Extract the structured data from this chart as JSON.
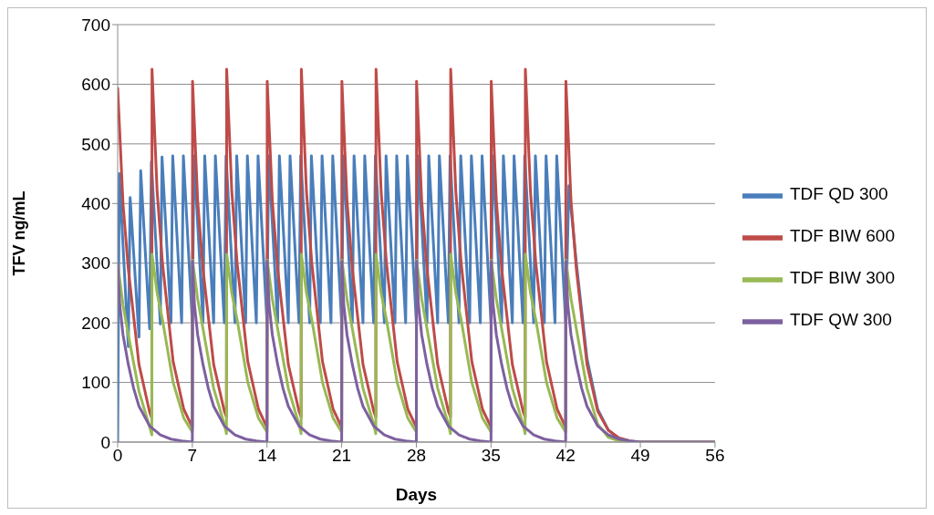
{
  "chart_data": {
    "type": "line",
    "xlabel": "Days",
    "ylabel": "TFV ng/mL",
    "xlim": [
      0,
      56
    ],
    "xticks": [
      0,
      7,
      14,
      21,
      28,
      35,
      42,
      49,
      56
    ],
    "ylim": [
      0,
      700
    ],
    "yticks": [
      0,
      100,
      200,
      300,
      400,
      500,
      600,
      700
    ],
    "grid": "y",
    "legend": "right",
    "marker": "none",
    "line_style": "solid",
    "series": [
      {
        "name": "TDF QD 300",
        "color": "#4a7ebb",
        "x": [
          0,
          0.15,
          1,
          1.17,
          2,
          2.16,
          3,
          3.16,
          4,
          4.16,
          5,
          5.16,
          6,
          6.16,
          7,
          7.16,
          8,
          8.16,
          9,
          9.16,
          10,
          10.16,
          11,
          11.16,
          12,
          12.16,
          13,
          13.16,
          14,
          14.16,
          15,
          15.16,
          16,
          16.16,
          17,
          17.16,
          18,
          18.16,
          19,
          19.16,
          20,
          20.16,
          21,
          21.16,
          22,
          22.16,
          23,
          23.16,
          24,
          24.16,
          25,
          25.16,
          26,
          26.16,
          27,
          27.16,
          28,
          28.16,
          29,
          29.16,
          30,
          30.16,
          31,
          31.16,
          32,
          32.16,
          33,
          33.16,
          34,
          34.16,
          35,
          35.16,
          36,
          36.16,
          37,
          37.16,
          38,
          38.16,
          39,
          39.16,
          40,
          40.16,
          41,
          41.16,
          42,
          42.3,
          43,
          44,
          45,
          46,
          47,
          48
        ],
        "values": [
          0,
          450,
          160,
          410,
          176,
          455,
          190,
          470,
          198,
          478,
          200,
          480,
          200,
          480,
          200,
          480,
          200,
          480,
          200,
          480,
          200,
          480,
          200,
          480,
          200,
          480,
          200,
          480,
          200,
          480,
          200,
          480,
          200,
          480,
          200,
          480,
          200,
          480,
          200,
          480,
          200,
          480,
          200,
          480,
          200,
          480,
          200,
          480,
          200,
          480,
          200,
          480,
          200,
          480,
          200,
          480,
          200,
          480,
          200,
          480,
          200,
          480,
          200,
          480,
          200,
          480,
          200,
          480,
          200,
          480,
          200,
          480,
          200,
          480,
          200,
          480,
          200,
          480,
          200,
          480,
          200,
          480,
          200,
          480,
          200,
          430,
          300,
          140,
          55,
          20,
          6,
          2
        ]
      },
      {
        "name": "TDF BIW 600",
        "color": "#be4b48",
        "x": [
          0,
          0.5,
          1,
          2,
          3,
          3.2,
          3.22,
          3.7,
          4.2,
          5.2,
          6.2,
          7,
          7.02,
          7.5,
          8,
          9,
          10,
          10.2,
          10.22,
          10.7,
          11.2,
          12.2,
          13.2,
          14,
          14.02,
          14.5,
          15,
          16,
          17,
          17.2,
          17.22,
          17.7,
          18.2,
          19.2,
          20.2,
          21,
          21.02,
          21.5,
          22,
          23,
          24,
          24.2,
          24.22,
          24.7,
          25.2,
          26.2,
          27.2,
          28,
          28.02,
          28.5,
          29,
          30,
          31,
          31.2,
          31.22,
          31.7,
          32.2,
          33.2,
          34.2,
          35,
          35.02,
          35.5,
          36,
          37,
          38,
          38.2,
          38.22,
          38.7,
          39.2,
          40.2,
          41.2,
          42,
          42.02,
          42.5,
          43,
          44,
          45,
          46,
          47,
          48,
          49,
          56
        ],
        "values": [
          595,
          400,
          290,
          130,
          50,
          40,
          625,
          420,
          300,
          135,
          55,
          25,
          605,
          405,
          290,
          130,
          52,
          42,
          625,
          420,
          300,
          135,
          55,
          25,
          605,
          405,
          290,
          130,
          52,
          42,
          625,
          420,
          300,
          135,
          55,
          25,
          605,
          405,
          290,
          130,
          52,
          42,
          625,
          420,
          300,
          135,
          55,
          25,
          605,
          405,
          290,
          130,
          52,
          42,
          625,
          420,
          300,
          135,
          55,
          25,
          605,
          405,
          290,
          130,
          52,
          42,
          625,
          420,
          300,
          135,
          55,
          25,
          605,
          405,
          290,
          130,
          52,
          20,
          7,
          2,
          0,
          0
        ]
      },
      {
        "name": "TDF BIW 300",
        "color": "#98b954",
        "x": [
          0,
          0.5,
          1,
          2,
          3,
          3.2,
          3.22,
          3.7,
          4.2,
          5.2,
          6.2,
          7,
          7.02,
          7.5,
          8,
          9,
          10,
          10.2,
          10.22,
          10.7,
          11.2,
          12.2,
          13.2,
          14,
          14.02,
          14.5,
          15,
          16,
          17,
          17.2,
          17.22,
          17.7,
          18.2,
          19.2,
          20.2,
          21,
          21.02,
          21.5,
          22,
          23,
          24,
          24.2,
          24.22,
          24.7,
          25.2,
          26.2,
          27.2,
          28,
          28.02,
          28.5,
          29,
          30,
          31,
          31.2,
          31.22,
          31.7,
          32.2,
          33.2,
          34.2,
          35,
          35.02,
          35.5,
          36,
          37,
          38,
          38.2,
          38.22,
          38.7,
          39.2,
          40.2,
          41.2,
          42,
          42.02,
          42.5,
          43,
          44,
          45,
          46,
          47,
          48,
          49,
          56
        ],
        "values": [
          300,
          230,
          180,
          85,
          25,
          12,
          315,
          250,
          205,
          100,
          40,
          17,
          305,
          240,
          190,
          90,
          30,
          14,
          315,
          250,
          205,
          100,
          40,
          17,
          305,
          240,
          190,
          90,
          30,
          14,
          315,
          250,
          205,
          100,
          40,
          17,
          305,
          240,
          190,
          90,
          30,
          14,
          315,
          250,
          205,
          100,
          40,
          17,
          305,
          240,
          190,
          90,
          30,
          14,
          315,
          250,
          205,
          100,
          40,
          17,
          305,
          240,
          190,
          90,
          30,
          14,
          315,
          250,
          205,
          100,
          40,
          17,
          305,
          240,
          190,
          90,
          30,
          8,
          2,
          0,
          0,
          0
        ]
      },
      {
        "name": "TDF QW 300",
        "color": "#7d60a0",
        "x": [
          0,
          0.2,
          0.5,
          1,
          1.5,
          2,
          3,
          4,
          5,
          6,
          7,
          7.02,
          7.2,
          7.5,
          8,
          8.5,
          9,
          10,
          11,
          12,
          13,
          14,
          14.02,
          14.2,
          14.5,
          15,
          15.5,
          16,
          17,
          18,
          19,
          20,
          21,
          21.02,
          21.2,
          21.5,
          22,
          22.5,
          23,
          24,
          25,
          26,
          27,
          28,
          28.02,
          28.2,
          28.5,
          29,
          29.5,
          30,
          31,
          32,
          33,
          34,
          35,
          35.02,
          35.2,
          35.5,
          36,
          36.5,
          37,
          38,
          39,
          40,
          41,
          42,
          42.02,
          42.2,
          42.5,
          43,
          43.5,
          44,
          45,
          46,
          47,
          48,
          49,
          56
        ],
        "values": [
          300,
          230,
          180,
          130,
          90,
          60,
          27,
          12,
          5,
          2,
          0,
          303,
          230,
          180,
          130,
          90,
          60,
          27,
          12,
          5,
          2,
          0,
          303,
          230,
          180,
          130,
          90,
          60,
          27,
          12,
          5,
          2,
          0,
          303,
          230,
          180,
          130,
          90,
          60,
          27,
          12,
          5,
          2,
          0,
          303,
          230,
          180,
          130,
          90,
          60,
          27,
          12,
          5,
          2,
          0,
          303,
          230,
          180,
          130,
          90,
          60,
          27,
          12,
          5,
          2,
          0,
          303,
          230,
          180,
          130,
          90,
          60,
          27,
          12,
          5,
          2,
          0,
          0
        ]
      }
    ]
  }
}
